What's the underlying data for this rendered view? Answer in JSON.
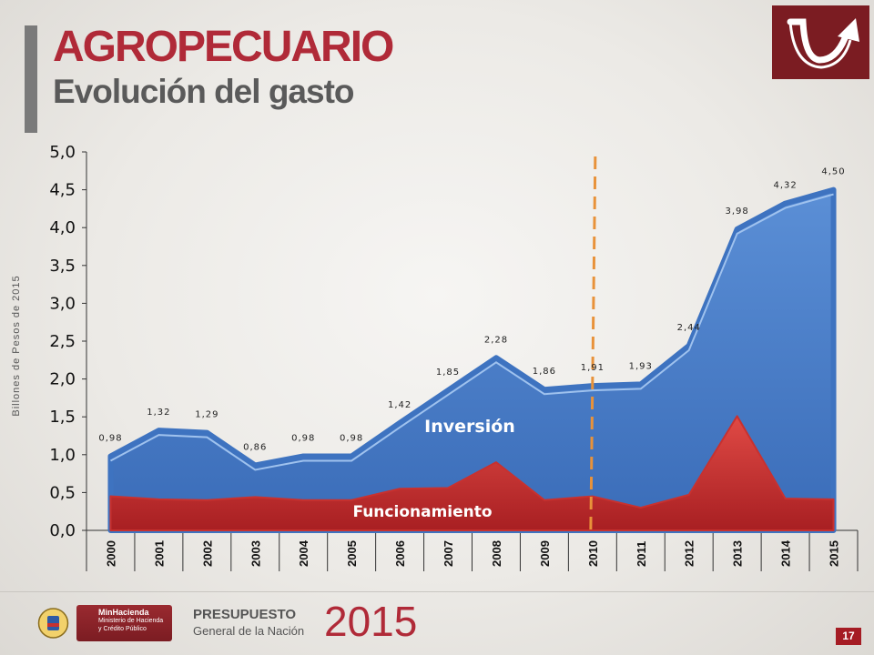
{
  "header": {
    "title": "AGROPECUARIO",
    "subtitle": "Evolución del gasto"
  },
  "logo": {
    "icon": "arrow-u-turn-icon",
    "bg_color": "#7b1c22"
  },
  "chart_data": {
    "type": "area",
    "ylabel": "Billones de Pesos de 2015",
    "ylim": [
      0,
      5
    ],
    "yticks": [
      "0,0",
      "0,5",
      "1,0",
      "1,5",
      "2,0",
      "2,5",
      "3,0",
      "3,5",
      "4,0",
      "4,5",
      "5,0"
    ],
    "categories": [
      "2000",
      "2001",
      "2002",
      "2003",
      "2004",
      "2005",
      "2006",
      "2007",
      "2008",
      "2009",
      "2010",
      "2011",
      "2012",
      "2013",
      "2014",
      "2015"
    ],
    "series": [
      {
        "name": "Funcionamiento",
        "color": "#c8312f",
        "values": [
          0.45,
          0.41,
          0.4,
          0.44,
          0.4,
          0.4,
          0.55,
          0.56,
          0.9,
          0.4,
          0.45,
          0.3,
          0.47,
          1.51,
          0.42,
          0.41
        ]
      },
      {
        "name": "Inversión",
        "color": "#4a7fc8",
        "values": [
          0.53,
          0.91,
          0.89,
          0.42,
          0.58,
          0.58,
          0.87,
          1.29,
          1.38,
          1.46,
          1.46,
          1.63,
          1.97,
          2.47,
          3.9,
          4.09
        ]
      }
    ],
    "totals": [
      0.98,
      1.32,
      1.29,
      0.86,
      0.98,
      0.98,
      1.42,
      1.85,
      2.28,
      1.86,
      1.91,
      1.93,
      2.44,
      3.98,
      4.32,
      4.5
    ],
    "total_labels": [
      "0,98",
      "1,32",
      "1,29",
      "0,86",
      "0,98",
      "0,98",
      "1,42",
      "1,85",
      "2,28",
      "1,86",
      "1,91",
      "1,93",
      "2,44",
      "3,98",
      "4,32",
      "4,50"
    ],
    "reference_line": {
      "at_category": "2010",
      "color": "#e8923a",
      "style": "dashed"
    },
    "grid": false,
    "legend": "inline"
  },
  "footer": {
    "ministry_name": "MinHacienda",
    "ministry_sub1": "Ministerio de Hacienda",
    "ministry_sub2": "y Crédito Público",
    "budget_label": "PRESUPUESTO",
    "budget_sub": "General de la Nación",
    "budget_year": "2015",
    "page_number": "17"
  }
}
